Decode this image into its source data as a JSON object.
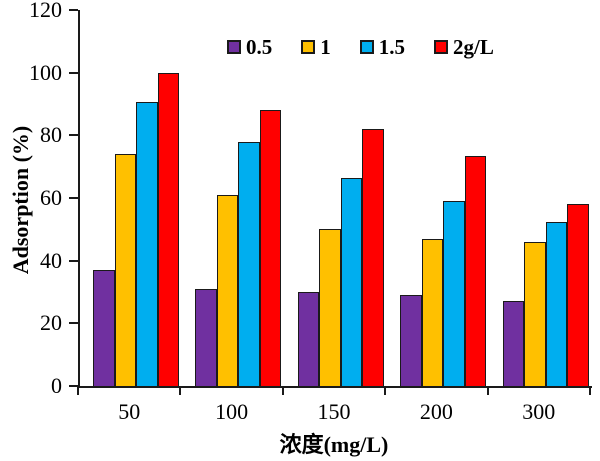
{
  "chart_data": {
    "type": "bar",
    "title": "",
    "xlabel": "浓度(mg/L)",
    "ylabel": "Adsorption (%)",
    "ylim": [
      0,
      120
    ],
    "ytick_step": 20,
    "grid": false,
    "legend_position": "top-center-inside",
    "categories": [
      "50",
      "100",
      "150",
      "200",
      "300"
    ],
    "series": [
      {
        "name": "0.5",
        "color": "#7030A0",
        "values": [
          37,
          31,
          30,
          29,
          27
        ]
      },
      {
        "name": "1",
        "color": "#FFC000",
        "values": [
          74,
          61,
          50,
          47,
          46
        ]
      },
      {
        "name": "1.5",
        "color": "#00AEEF",
        "values": [
          90.5,
          78,
          66.5,
          59,
          52.5
        ]
      },
      {
        "name": "2g/L",
        "color": "#FF0000",
        "values": [
          100,
          88,
          82,
          73.5,
          58
        ]
      }
    ]
  },
  "colors": {
    "axis": "#1A1A1A",
    "bar_outline": "#1A1A1A",
    "background": "#FFFFFF",
    "text": "#000000"
  }
}
